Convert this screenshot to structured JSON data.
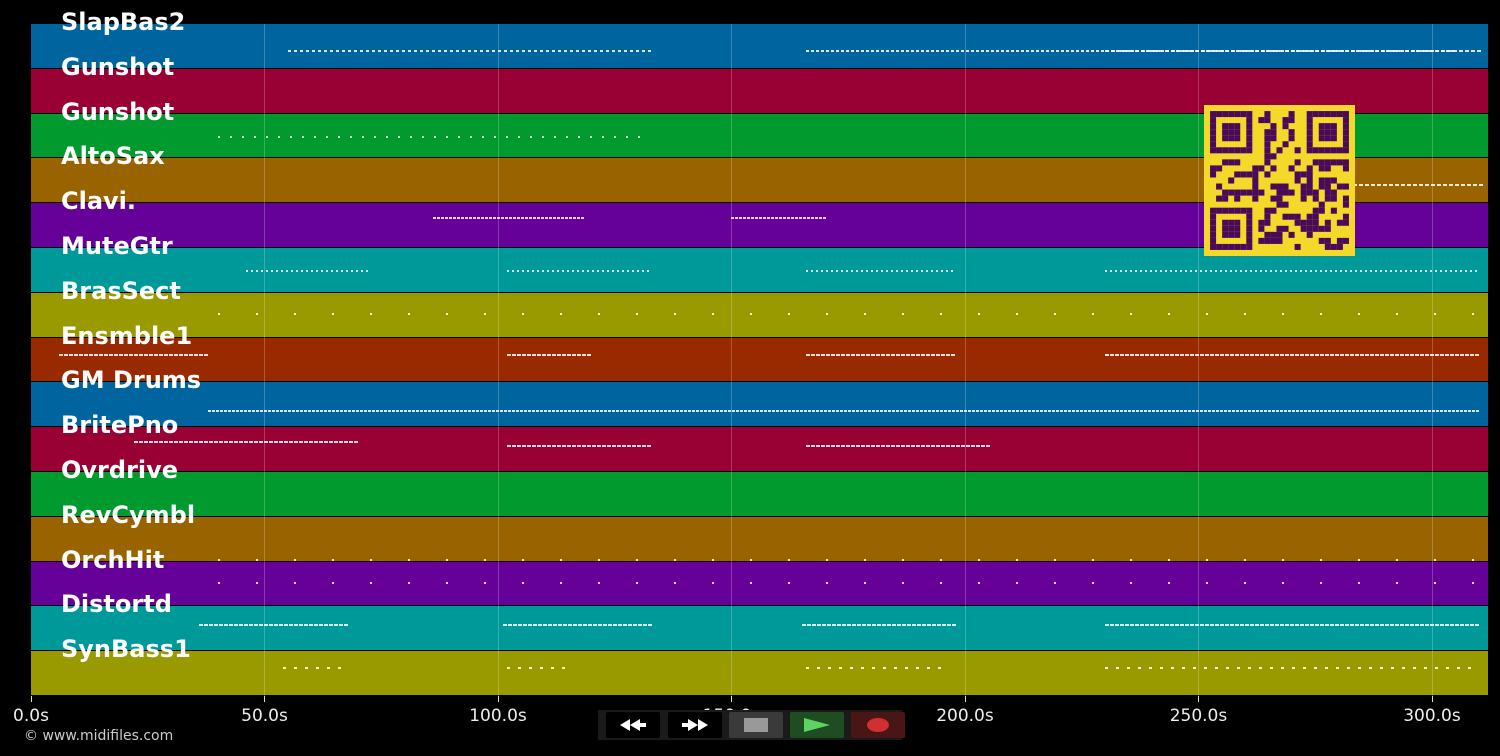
{
  "tracks": [
    {
      "name": "SlapBas2",
      "color": "#00659f"
    },
    {
      "name": "Gunshot",
      "color": "#990033"
    },
    {
      "name": "Gunshot",
      "color": "#009a2e"
    },
    {
      "name": "AltoSax",
      "color": "#996300"
    },
    {
      "name": "Clavi.",
      "color": "#650099"
    },
    {
      "name": "MuteGtr",
      "color": "#009999"
    },
    {
      "name": "BrasSect",
      "color": "#999900"
    },
    {
      "name": "Ensmble1",
      "color": "#992a00"
    },
    {
      "name": "GM Drums",
      "color": "#00659f"
    },
    {
      "name": "BritePno",
      "color": "#990033"
    },
    {
      "name": "Ovrdrive",
      "color": "#009a2e"
    },
    {
      "name": "RevCymbl",
      "color": "#996300"
    },
    {
      "name": "OrchHit",
      "color": "#650099"
    },
    {
      "name": "Distortd",
      "color": "#009999"
    },
    {
      "name": "SynBass1",
      "color": "#999900"
    }
  ],
  "timeline": {
    "ticks": [
      "0.0s",
      "50.0s",
      "100.0s",
      "150.0s",
      "200.0s",
      "250.0s",
      "300.0s"
    ],
    "tick_values": [
      0,
      50,
      100,
      150,
      200,
      250,
      300
    ],
    "max_seconds": 312
  },
  "copyright": "© www.midifiles.com",
  "transport": {
    "rewind_icon": "rewind-icon",
    "fastforward_icon": "fast-forward-icon",
    "stop_icon": "stop-icon",
    "play_icon": "play-icon",
    "record_icon": "record-icon"
  },
  "qr_icon": "qr-code-icon"
}
